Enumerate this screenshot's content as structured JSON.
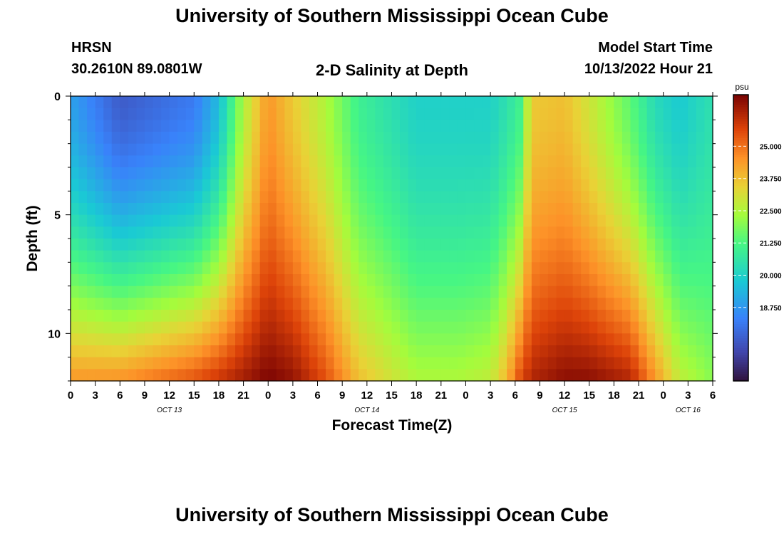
{
  "header": {
    "title": "University of Southern Mississippi Ocean Cube",
    "station": "HRSN",
    "coords": "30.2610N  89.0801W",
    "subtitle": "2-D Salinity at Depth",
    "model_label": "Model Start Time",
    "model_time": "10/13/2022 Hour 21"
  },
  "footer": {
    "title": "University of Southern Mississippi Ocean Cube"
  },
  "chart_data": {
    "type": "heatmap",
    "title": "2-D Salinity at Depth",
    "xlabel": "Forecast Time(Z)",
    "ylabel": "Depth (ft)",
    "units": "psu",
    "x_start_hour": 0,
    "x_end_hour": 78,
    "x_ticks": [
      {
        "hour": 0,
        "label": "0"
      },
      {
        "hour": 3,
        "label": "3"
      },
      {
        "hour": 6,
        "label": "6"
      },
      {
        "hour": 9,
        "label": "9"
      },
      {
        "hour": 12,
        "label": "12"
      },
      {
        "hour": 15,
        "label": "15"
      },
      {
        "hour": 18,
        "label": "18"
      },
      {
        "hour": 21,
        "label": "21"
      },
      {
        "hour": 24,
        "label": "0"
      },
      {
        "hour": 27,
        "label": "3"
      },
      {
        "hour": 30,
        "label": "6"
      },
      {
        "hour": 33,
        "label": "9"
      },
      {
        "hour": 36,
        "label": "12"
      },
      {
        "hour": 39,
        "label": "15"
      },
      {
        "hour": 42,
        "label": "18"
      },
      {
        "hour": 45,
        "label": "21"
      },
      {
        "hour": 48,
        "label": "0"
      },
      {
        "hour": 51,
        "label": "3"
      },
      {
        "hour": 54,
        "label": "6"
      },
      {
        "hour": 57,
        "label": "9"
      },
      {
        "hour": 60,
        "label": "12"
      },
      {
        "hour": 63,
        "label": "15"
      },
      {
        "hour": 66,
        "label": "18"
      },
      {
        "hour": 69,
        "label": "21"
      },
      {
        "hour": 72,
        "label": "0"
      },
      {
        "hour": 75,
        "label": "3"
      },
      {
        "hour": 78,
        "label": "6"
      }
    ],
    "date_labels": [
      {
        "hour": 12,
        "label": "OCT 13"
      },
      {
        "hour": 36,
        "label": "OCT 14"
      },
      {
        "hour": 60,
        "label": "OCT 15"
      },
      {
        "hour": 75,
        "label": "OCT 16"
      }
    ],
    "y_range_ft": [
      0,
      12
    ],
    "y_ticks": [
      0,
      5,
      10
    ],
    "depth_rows_ft": [
      0.25,
      0.75,
      1.25,
      1.75,
      2.25,
      2.75,
      3.25,
      3.75,
      4.25,
      4.75,
      5.25,
      5.75,
      6.25,
      6.75,
      7.25,
      7.75,
      8.25,
      8.75,
      9.25,
      9.75,
      10.25,
      10.75,
      11.25,
      11.75
    ],
    "salinity_keypoints_hour": [
      0,
      6,
      15,
      18,
      21,
      24,
      27,
      31,
      35,
      42,
      47,
      51,
      53,
      54.5,
      56,
      60,
      63,
      68,
      71,
      74,
      78
    ],
    "salinity_keypoints_surface": [
      19.0,
      17.5,
      18.2,
      19.5,
      22.5,
      24.5,
      23.6,
      22.5,
      21.0,
      20.0,
      20.0,
      20.0,
      20.5,
      21.0,
      23.6,
      23.8,
      23.0,
      21.5,
      20.3,
      19.8,
      20.5
    ],
    "salinity_keypoints_bottom": [
      24.5,
      24.6,
      25.5,
      26.0,
      26.5,
      27.0,
      26.7,
      25.5,
      23.8,
      22.5,
      22.5,
      22.8,
      24.0,
      25.5,
      26.3,
      26.8,
      26.8,
      26.3,
      24.5,
      22.8,
      22.0
    ],
    "colorbar": {
      "min": 15.9,
      "max": 27.0,
      "ticks": [
        "18.750",
        "20.000",
        "21.250",
        "22.500",
        "23.750",
        "25.000"
      ]
    }
  }
}
